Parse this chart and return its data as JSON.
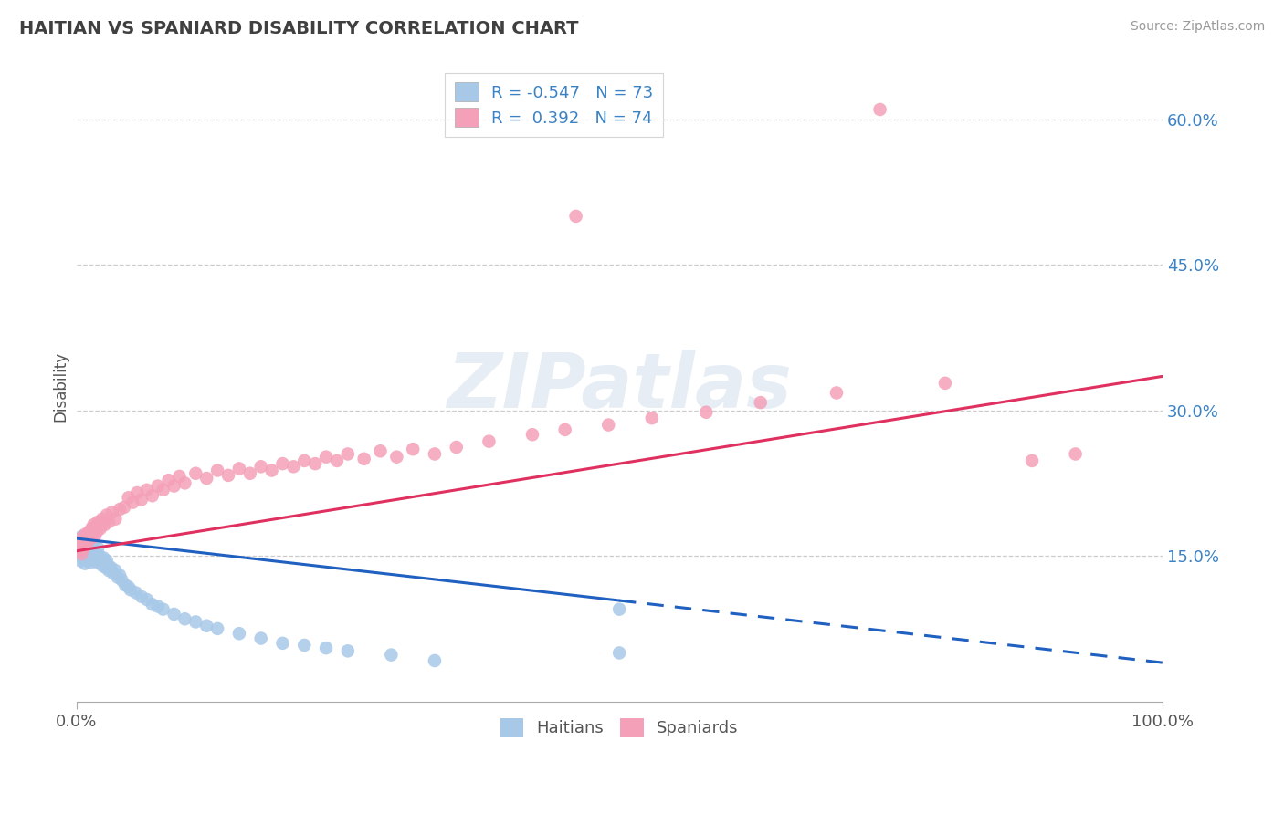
{
  "title": "HAITIAN VS SPANIARD DISABILITY CORRELATION CHART",
  "source": "Source: ZipAtlas.com",
  "ylabel": "Disability",
  "r_haitian": -0.547,
  "n_haitian": 73,
  "r_spaniard": 0.392,
  "n_spaniard": 74,
  "color_haitian": "#a8c8e8",
  "color_spaniard": "#f4a0b8",
  "line_color_haitian": "#2060c0",
  "line_color_spaniard": "#e03060",
  "background_color": "#ffffff",
  "title_color": "#404040",
  "watermark_text": "ZIPatlas",
  "legend_label_haitian": "Haitians",
  "legend_label_spaniard": "Spaniards",
  "haitian_x": [
    0.002,
    0.003,
    0.004,
    0.004,
    0.005,
    0.005,
    0.006,
    0.006,
    0.007,
    0.007,
    0.008,
    0.008,
    0.009,
    0.009,
    0.01,
    0.01,
    0.011,
    0.011,
    0.012,
    0.012,
    0.013,
    0.013,
    0.014,
    0.014,
    0.015,
    0.015,
    0.016,
    0.016,
    0.017,
    0.018,
    0.019,
    0.02,
    0.02,
    0.021,
    0.022,
    0.023,
    0.024,
    0.025,
    0.026,
    0.027,
    0.028,
    0.029,
    0.03,
    0.032,
    0.034,
    0.036,
    0.038,
    0.04,
    0.042,
    0.045,
    0.048,
    0.05,
    0.055,
    0.06,
    0.065,
    0.07,
    0.075,
    0.08,
    0.09,
    0.1,
    0.11,
    0.12,
    0.13,
    0.15,
    0.17,
    0.19,
    0.21,
    0.23,
    0.25,
    0.29,
    0.33,
    0.5,
    0.5
  ],
  "haitian_y": [
    0.155,
    0.16,
    0.145,
    0.165,
    0.15,
    0.17,
    0.148,
    0.162,
    0.153,
    0.168,
    0.142,
    0.158,
    0.147,
    0.163,
    0.152,
    0.168,
    0.145,
    0.16,
    0.148,
    0.165,
    0.143,
    0.157,
    0.149,
    0.163,
    0.146,
    0.16,
    0.148,
    0.163,
    0.15,
    0.155,
    0.148,
    0.143,
    0.158,
    0.15,
    0.147,
    0.145,
    0.14,
    0.148,
    0.143,
    0.138,
    0.145,
    0.14,
    0.135,
    0.138,
    0.132,
    0.135,
    0.128,
    0.13,
    0.125,
    0.12,
    0.118,
    0.115,
    0.112,
    0.108,
    0.105,
    0.1,
    0.098,
    0.095,
    0.09,
    0.085,
    0.082,
    0.078,
    0.075,
    0.07,
    0.065,
    0.06,
    0.058,
    0.055,
    0.052,
    0.048,
    0.042,
    0.05,
    0.095
  ],
  "spaniard_x": [
    0.002,
    0.003,
    0.004,
    0.005,
    0.006,
    0.007,
    0.008,
    0.009,
    0.01,
    0.011,
    0.012,
    0.013,
    0.014,
    0.015,
    0.016,
    0.017,
    0.018,
    0.019,
    0.02,
    0.022,
    0.024,
    0.026,
    0.028,
    0.03,
    0.033,
    0.036,
    0.04,
    0.044,
    0.048,
    0.052,
    0.056,
    0.06,
    0.065,
    0.07,
    0.075,
    0.08,
    0.085,
    0.09,
    0.095,
    0.1,
    0.11,
    0.12,
    0.13,
    0.14,
    0.15,
    0.16,
    0.17,
    0.18,
    0.19,
    0.2,
    0.21,
    0.22,
    0.23,
    0.24,
    0.25,
    0.265,
    0.28,
    0.295,
    0.31,
    0.33,
    0.35,
    0.38,
    0.42,
    0.45,
    0.49,
    0.53,
    0.58,
    0.63,
    0.7,
    0.8,
    0.88,
    0.92,
    0.46,
    0.74
  ],
  "spaniard_y": [
    0.16,
    0.155,
    0.168,
    0.152,
    0.165,
    0.158,
    0.172,
    0.162,
    0.17,
    0.165,
    0.175,
    0.168,
    0.178,
    0.172,
    0.182,
    0.17,
    0.18,
    0.175,
    0.185,
    0.178,
    0.188,
    0.182,
    0.192,
    0.185,
    0.195,
    0.188,
    0.198,
    0.2,
    0.21,
    0.205,
    0.215,
    0.208,
    0.218,
    0.212,
    0.222,
    0.218,
    0.228,
    0.222,
    0.232,
    0.225,
    0.235,
    0.23,
    0.238,
    0.233,
    0.24,
    0.235,
    0.242,
    0.238,
    0.245,
    0.242,
    0.248,
    0.245,
    0.252,
    0.248,
    0.255,
    0.25,
    0.258,
    0.252,
    0.26,
    0.255,
    0.262,
    0.268,
    0.275,
    0.28,
    0.285,
    0.292,
    0.298,
    0.308,
    0.318,
    0.328,
    0.248,
    0.255,
    0.5,
    0.61
  ],
  "line_haitian_x0": 0.0,
  "line_haitian_y0": 0.168,
  "line_haitian_x1": 1.0,
  "line_haitian_y1": 0.04,
  "line_spaniard_x0": 0.0,
  "line_spaniard_y0": 0.155,
  "line_spaniard_x1": 1.0,
  "line_spaniard_y1": 0.335,
  "xlim": [
    0.0,
    1.0
  ],
  "ylim": [
    0.0,
    0.65
  ],
  "yticks": [
    0.15,
    0.3,
    0.45,
    0.6
  ],
  "ytick_labels": [
    "15.0%",
    "30.0%",
    "45.0%",
    "60.0%"
  ]
}
